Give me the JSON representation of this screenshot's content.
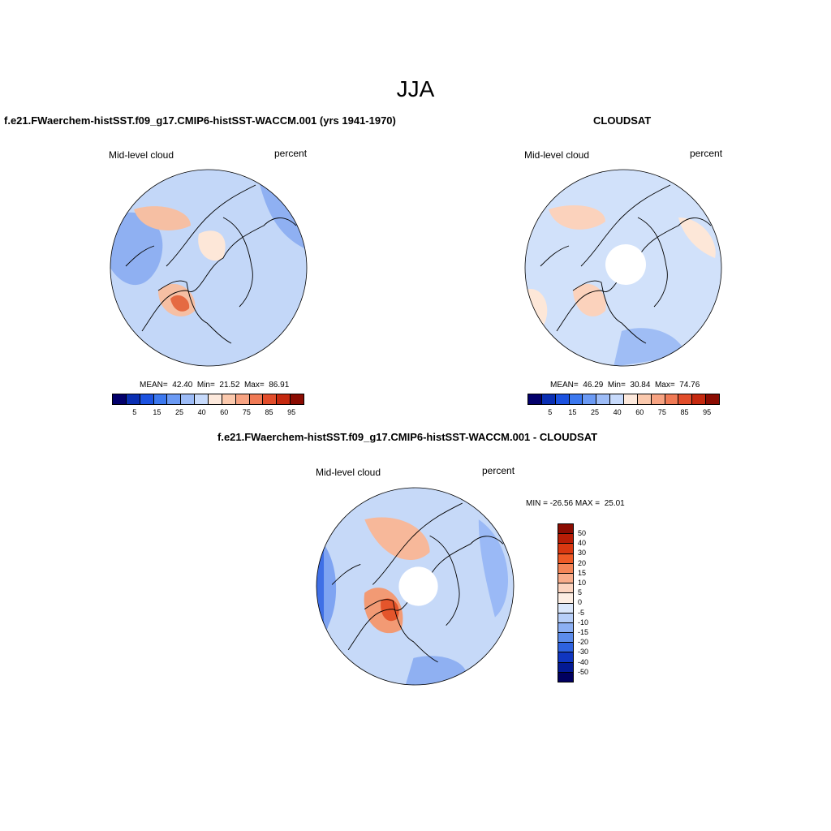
{
  "figure": {
    "title": "JJA"
  },
  "panel_left": {
    "title": "f.e21.FWaerchem-histSST.f09_g17.CMIP6-histSST-WACCM.001 (yrs 1941-1970)",
    "variable": "Mid-level cloud",
    "units": "percent",
    "stats": "MEAN=  42.40  Min=  21.52  Max=  86.91",
    "colorbar_ticks": [
      "5",
      "15",
      "25",
      "40",
      "60",
      "75",
      "85",
      "95"
    ]
  },
  "panel_right": {
    "title": "CLOUDSAT",
    "variable": "Mid-level cloud",
    "units": "percent",
    "stats": "MEAN=  46.29  Min=  30.84  Max=  74.76",
    "colorbar_ticks": [
      "5",
      "15",
      "25",
      "40",
      "60",
      "75",
      "85",
      "95"
    ]
  },
  "panel_diff": {
    "title": "f.e21.FWaerchem-histSST.f09_g17.CMIP6-histSST-WACCM.001 - CLOUDSAT",
    "variable": "Mid-level cloud",
    "units": "percent",
    "stats": "MIN = -26.56 MAX =  25.01",
    "colorbar_ticks": [
      "50",
      "40",
      "30",
      "20",
      "15",
      "10",
      "5",
      "0",
      "-5",
      "-10",
      "-15",
      "-20",
      "-30",
      "-40",
      "-50"
    ]
  },
  "colors": {
    "sequential": [
      "#03006b",
      "#0a2fb3",
      "#1c52e0",
      "#3c78ef",
      "#6b9af4",
      "#9dbcf7",
      "#c7dafb",
      "#fde9dc",
      "#fbc9ad",
      "#f7a382",
      "#f07a55",
      "#e24d2b",
      "#c5290f",
      "#8b0c02"
    ],
    "diverging": [
      "#8b0c02",
      "#b81d06",
      "#d93811",
      "#ee5a26",
      "#f48557",
      "#f9ad8b",
      "#fcd4bf",
      "#fdeee3",
      "#dbe8fc",
      "#b7cff9",
      "#8cb0f4",
      "#5c8ceb",
      "#2e62e0",
      "#1036c0",
      "#041a94",
      "#01005f"
    ],
    "map_background": "#c9dbf7",
    "high_cloud": "#f7b89a",
    "low_cloud": "#6f9ef2"
  }
}
